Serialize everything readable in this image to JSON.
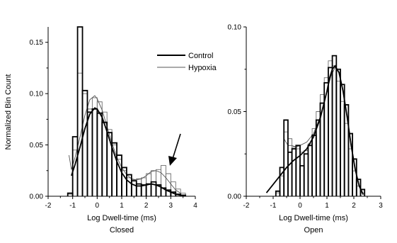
{
  "chart_data": [
    {
      "type": "histogram",
      "ylabel": "Normalized Bin Count",
      "xlabel": "Log Dwell-time (ms)",
      "sublabel": "Closed",
      "xlim": [
        -2,
        4
      ],
      "ylim": [
        0,
        0.165
      ],
      "xticks": [
        "-2",
        "-1",
        "0",
        "1",
        "2",
        "3",
        "4"
      ],
      "yticks": [
        "0.00",
        "0.05",
        "0.10",
        "0.15"
      ],
      "ytick_values": [
        0,
        0.05,
        0.1,
        0.15
      ],
      "legend": {
        "placement": "top-right",
        "entries": [
          "Control",
          "Hypoxia"
        ]
      },
      "annotation": "arrow pointing to hypoxia peak near 2.5",
      "bin_edges": [
        -1.2,
        -1.0,
        -0.8,
        -0.6,
        -0.4,
        -0.2,
        0.0,
        0.2,
        0.4,
        0.6,
        0.8,
        1.0,
        1.2,
        1.4,
        1.6,
        1.8,
        2.0,
        2.2,
        2.4,
        2.6,
        2.8,
        3.0,
        3.2,
        3.4,
        3.6
      ],
      "series": [
        {
          "name": "Control",
          "color": "#000000",
          "values": [
            0.003,
            0.058,
            0.165,
            0.103,
            0.082,
            0.085,
            0.081,
            0.072,
            0.062,
            0.052,
            0.04,
            0.028,
            0.021,
            0.015,
            0.012,
            0.011,
            0.012,
            0.014,
            0.011,
            0.008,
            0.006,
            0.004,
            0.002,
            0.001
          ],
          "fit_x": [
            -1.05,
            -0.9,
            -0.7,
            -0.5,
            -0.3,
            -0.1,
            0.0,
            0.2,
            0.4,
            0.6,
            0.8,
            1.0,
            1.2,
            1.4,
            1.6,
            1.8,
            2.0,
            2.2,
            2.4,
            2.6,
            2.8,
            3.0,
            3.2,
            3.4
          ],
          "fit_y": [
            0.02,
            0.031,
            0.048,
            0.066,
            0.08,
            0.086,
            0.085,
            0.077,
            0.063,
            0.048,
            0.034,
            0.023,
            0.016,
            0.012,
            0.01,
            0.01,
            0.011,
            0.012,
            0.011,
            0.009,
            0.006,
            0.004,
            0.002,
            0.001
          ]
        },
        {
          "name": "Hypoxia",
          "color": "#6b6b6b",
          "values": [
            0.002,
            0.045,
            0.12,
            0.1,
            0.085,
            0.096,
            0.092,
            0.082,
            0.065,
            0.05,
            0.036,
            0.025,
            0.018,
            0.016,
            0.017,
            0.018,
            0.022,
            0.025,
            0.026,
            0.03,
            0.022,
            0.014,
            0.007,
            0.003
          ],
          "fit_x": [
            -1.15,
            -1.05,
            -0.9,
            -0.7,
            -0.5,
            -0.3,
            -0.1,
            0.0,
            0.2,
            0.4,
            0.6,
            0.8,
            1.0,
            1.2,
            1.4,
            1.6,
            1.8,
            2.0,
            2.2,
            2.4,
            2.6,
            2.8,
            3.0,
            3.2,
            3.4
          ],
          "fit_y": [
            0.04,
            0.026,
            0.038,
            0.058,
            0.079,
            0.094,
            0.098,
            0.095,
            0.084,
            0.068,
            0.052,
            0.038,
            0.028,
            0.021,
            0.017,
            0.016,
            0.017,
            0.02,
            0.024,
            0.025,
            0.023,
            0.018,
            0.012,
            0.006,
            0.003
          ]
        }
      ]
    },
    {
      "type": "histogram",
      "xlabel": "Log Dwell-time (ms)",
      "sublabel": "Open",
      "xlim": [
        -2,
        3
      ],
      "ylim": [
        0,
        0.1
      ],
      "xticks": [
        "-2",
        "-1",
        "0",
        "1",
        "2",
        "3"
      ],
      "yticks": [
        "0.00",
        "0.05",
        "0.10"
      ],
      "ytick_values": [
        0,
        0.05,
        0.1
      ],
      "bin_edges": [
        -0.9,
        -0.75,
        -0.6,
        -0.45,
        -0.3,
        -0.15,
        0.0,
        0.15,
        0.3,
        0.45,
        0.6,
        0.75,
        0.9,
        1.05,
        1.2,
        1.35,
        1.5,
        1.65,
        1.8,
        1.95,
        2.1,
        2.25,
        2.4
      ],
      "series": [
        {
          "name": "Control",
          "color": "#000000",
          "values": [
            0.003,
            0.017,
            0.045,
            0.026,
            0.028,
            0.03,
            0.018,
            0.025,
            0.03,
            0.036,
            0.045,
            0.055,
            0.067,
            0.076,
            0.083,
            0.075,
            0.066,
            0.054,
            0.037,
            0.022,
            0.01,
            0.004
          ],
          "fit_x": [
            -1.25,
            -1.0,
            -0.75,
            -0.5,
            -0.25,
            0.0,
            0.25,
            0.5,
            0.75,
            1.0,
            1.1,
            1.2,
            1.3,
            1.45,
            1.6,
            1.75,
            1.9,
            2.05,
            2.2,
            2.35
          ],
          "fit_y": [
            0.002,
            0.007,
            0.012,
            0.017,
            0.021,
            0.024,
            0.028,
            0.035,
            0.046,
            0.062,
            0.07,
            0.075,
            0.077,
            0.073,
            0.062,
            0.047,
            0.03,
            0.016,
            0.006,
            0.001
          ]
        },
        {
          "name": "Hypoxia",
          "color": "#6b6b6b",
          "values": [
            0.002,
            0.012,
            0.038,
            0.034,
            0.029,
            0.028,
            0.026,
            0.027,
            0.031,
            0.04,
            0.05,
            0.06,
            0.07,
            0.08,
            0.077,
            0.068,
            0.056,
            0.043,
            0.028,
            0.015,
            0.006,
            0.002
          ],
          "fit_x": [
            -0.6,
            -0.45,
            -0.3,
            -0.15,
            0.0,
            0.25,
            0.5,
            0.75,
            1.0,
            1.15,
            1.3,
            1.45,
            1.6,
            1.75,
            1.9,
            2.05,
            2.2,
            2.35
          ],
          "fit_y": [
            0.034,
            0.03,
            0.03,
            0.029,
            0.03,
            0.032,
            0.037,
            0.047,
            0.062,
            0.071,
            0.076,
            0.073,
            0.062,
            0.047,
            0.031,
            0.016,
            0.006,
            0.001
          ]
        }
      ]
    }
  ]
}
